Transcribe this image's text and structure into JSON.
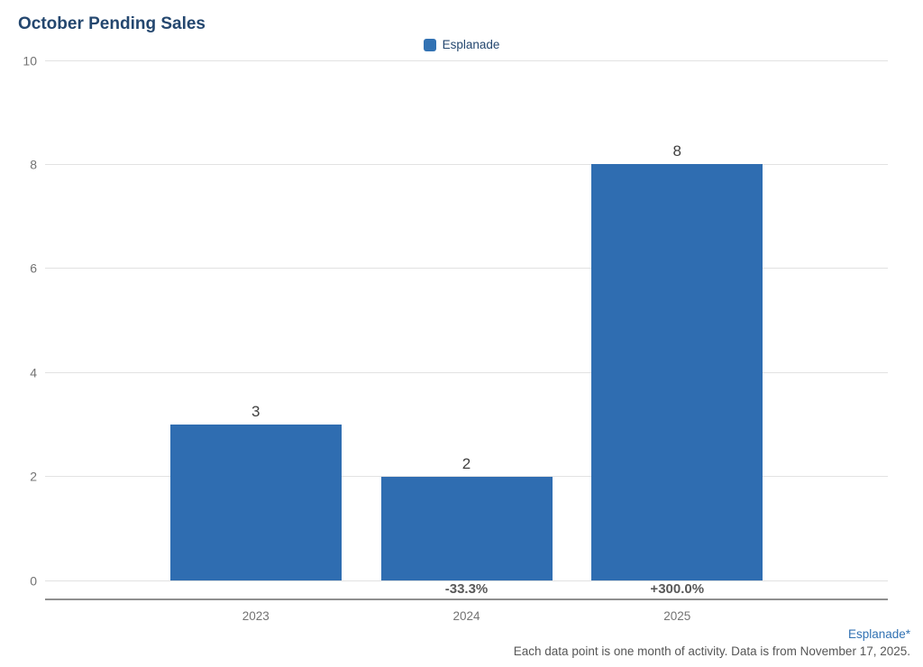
{
  "page": {
    "title": "October Pending Sales"
  },
  "legend": {
    "label": "Esplanade"
  },
  "colors": {
    "bar": "#2f6db1",
    "title": "#24476f",
    "link": "#3272b3",
    "legend_swatch": "#3272b3"
  },
  "footer": {
    "source_label": "Esplanade*",
    "note": "Each data point is one month of activity. Data is from November 17, 2025."
  },
  "chart_data": {
    "type": "bar",
    "title": "October Pending Sales",
    "categories": [
      "2023",
      "2024",
      "2025"
    ],
    "series": [
      {
        "name": "Esplanade",
        "values": [
          3,
          2,
          8
        ]
      }
    ],
    "value_labels": [
      "3",
      "2",
      "8"
    ],
    "change_labels": [
      null,
      "-33.3%",
      "+300.0%"
    ],
    "ylim": [
      0,
      10
    ],
    "yticks": [
      0,
      2,
      4,
      6,
      8,
      10
    ],
    "xlabel": "",
    "ylabel": "",
    "grid": "horizontal",
    "legend_position": "top-center",
    "legend_entries": [
      "Esplanade"
    ]
  }
}
